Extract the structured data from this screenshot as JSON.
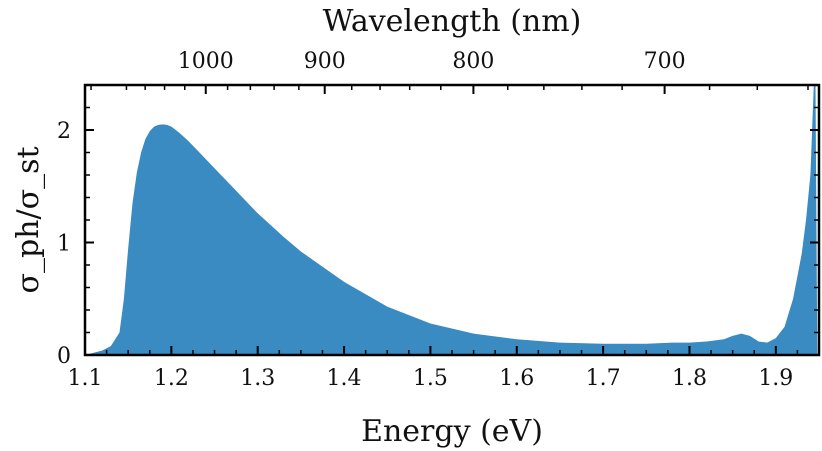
{
  "chart_data": {
    "type": "area",
    "title": "",
    "xlabel": "Energy (eV)",
    "ylabel": "σ_ph/σ_st",
    "x2label": "Wavelength (nm)",
    "xlim": [
      1.1,
      1.95
    ],
    "ylim": [
      0,
      2.4
    ],
    "xticks": [
      1.1,
      1.2,
      1.3,
      1.4,
      1.5,
      1.6,
      1.7,
      1.8,
      1.9
    ],
    "xtick_labels": [
      "1.1",
      "1.2",
      "1.3",
      "1.4",
      "1.5",
      "1.6",
      "1.7",
      "1.8",
      "1.9"
    ],
    "yticks": [
      0,
      1,
      2
    ],
    "ytick_labels": [
      "0",
      "1",
      "2"
    ],
    "top_axis": {
      "ticks_nm": [
        1000,
        900,
        800,
        700
      ],
      "tick_labels": [
        "1000",
        "900",
        "800",
        "700"
      ],
      "conversion": "E(eV) = 1239.84 / λ(nm)"
    },
    "fill_color": "#3a8bc2",
    "series": [
      {
        "name": "σ_ph/σ_st",
        "x": [
          1.1,
          1.12,
          1.13,
          1.14,
          1.145,
          1.15,
          1.155,
          1.16,
          1.165,
          1.17,
          1.175,
          1.18,
          1.185,
          1.19,
          1.195,
          1.2,
          1.21,
          1.22,
          1.23,
          1.25,
          1.27,
          1.3,
          1.33,
          1.35,
          1.4,
          1.45,
          1.5,
          1.55,
          1.6,
          1.65,
          1.7,
          1.75,
          1.78,
          1.8,
          1.82,
          1.84,
          1.85,
          1.86,
          1.87,
          1.88,
          1.89,
          1.9,
          1.91,
          1.92,
          1.93,
          1.935,
          1.94,
          1.942,
          1.944,
          1.946,
          1.948
        ],
        "y": [
          0.0,
          0.04,
          0.08,
          0.2,
          0.5,
          0.95,
          1.35,
          1.62,
          1.8,
          1.92,
          1.99,
          2.03,
          2.045,
          2.05,
          2.045,
          2.03,
          1.97,
          1.9,
          1.82,
          1.66,
          1.5,
          1.26,
          1.05,
          0.92,
          0.65,
          0.43,
          0.28,
          0.19,
          0.14,
          0.11,
          0.1,
          0.1,
          0.11,
          0.11,
          0.12,
          0.14,
          0.17,
          0.19,
          0.17,
          0.12,
          0.11,
          0.15,
          0.25,
          0.5,
          0.9,
          1.2,
          1.6,
          2.0,
          2.4,
          2.4,
          0.0
        ]
      }
    ]
  }
}
